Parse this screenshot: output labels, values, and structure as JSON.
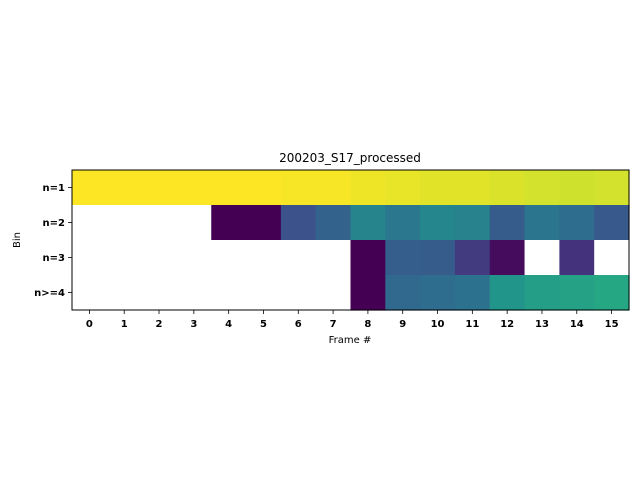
{
  "chart_data": {
    "type": "heatmap",
    "title": "200203_S17_processed",
    "xlabel": "Frame #",
    "ylabel": "Bin",
    "x_ticks": [
      "0",
      "1",
      "2",
      "3",
      "4",
      "5",
      "6",
      "7",
      "8",
      "9",
      "10",
      "11",
      "12",
      "13",
      "14",
      "15"
    ],
    "y_ticks": [
      "n=1",
      "n=2",
      "n=3",
      "n>=4"
    ],
    "colormap": "viridis",
    "missing_color": "#ffffff",
    "grid": false,
    "legend": "none",
    "values": [
      [
        1.0,
        1.0,
        1.0,
        1.0,
        1.0,
        1.0,
        0.99,
        0.99,
        0.98,
        0.97,
        0.96,
        0.96,
        0.95,
        0.94,
        0.93,
        0.94
      ],
      [
        null,
        null,
        null,
        null,
        0.0,
        0.0,
        0.25,
        0.32,
        0.45,
        0.4,
        0.46,
        0.44,
        0.29,
        0.39,
        0.36,
        0.28
      ],
      [
        null,
        null,
        null,
        null,
        null,
        null,
        null,
        null,
        0.0,
        0.3,
        0.29,
        0.19,
        0.04,
        null,
        0.17,
        null
      ],
      [
        null,
        null,
        null,
        null,
        null,
        null,
        null,
        null,
        0.0,
        0.34,
        0.36,
        0.38,
        0.52,
        0.56,
        0.58,
        0.6
      ]
    ]
  }
}
